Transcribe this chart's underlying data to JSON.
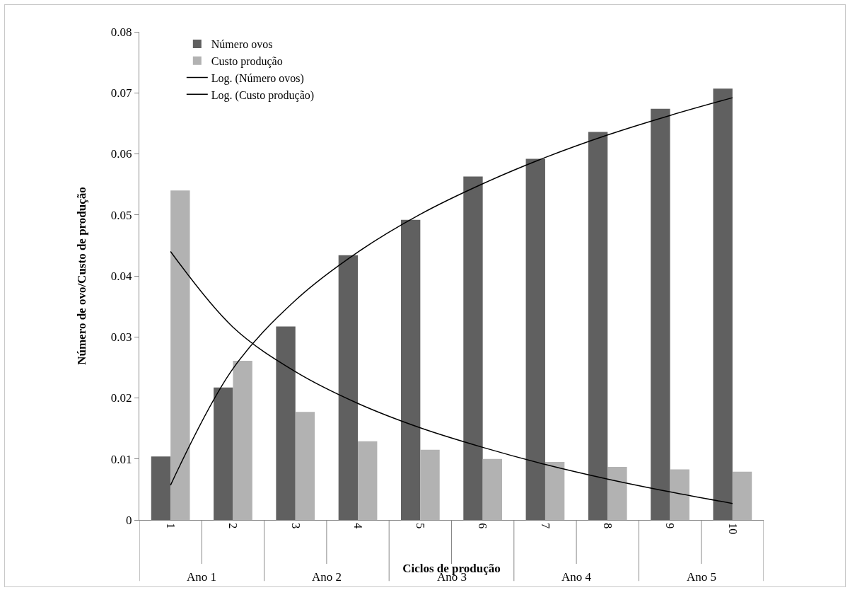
{
  "chart_data": {
    "type": "bar",
    "xlabel": "Ciclos de produção",
    "ylabel": "Número de ovo/Custo de produção",
    "categories": [
      "1",
      "2",
      "3",
      "4",
      "5",
      "6",
      "7",
      "8",
      "9",
      "10"
    ],
    "series": [
      {
        "name": "Número ovos",
        "color": "#606060",
        "values": [
          0.0104,
          0.0217,
          0.0317,
          0.0434,
          0.0492,
          0.0563,
          0.0592,
          0.0636,
          0.0674,
          0.0707
        ]
      },
      {
        "name": "Custo produção",
        "color": "#b2b2b2",
        "values": [
          0.054,
          0.0261,
          0.0177,
          0.0129,
          0.0115,
          0.01,
          0.0095,
          0.0087,
          0.0083,
          0.0079
        ]
      },
      {
        "name": "Log. (Número ovos)",
        "type": "line",
        "color": "#000000",
        "values": [
          0.0057,
          0.0248,
          0.036,
          0.0439,
          0.0501,
          0.0551,
          0.0594,
          0.0631,
          0.0663,
          0.0692
        ]
      },
      {
        "name": "Log. (Custo produção)",
        "type": "line",
        "color": "#000000",
        "values": [
          0.044,
          0.0316,
          0.0243,
          0.0191,
          0.0151,
          0.0119,
          0.0091,
          0.0067,
          0.0046,
          0.0027
        ]
      }
    ],
    "ylim": [
      0,
      0.08
    ],
    "yticks": [
      0,
      0.01,
      0.02,
      0.03,
      0.04,
      0.05,
      0.06,
      0.07,
      0.08
    ],
    "annotations": [
      "Ano 1",
      "Ano 2",
      "Ano 3",
      "Ano 4",
      "Ano 5"
    ],
    "grid": false,
    "legend": "top left",
    "marker": "none",
    "line_style": "solid"
  }
}
